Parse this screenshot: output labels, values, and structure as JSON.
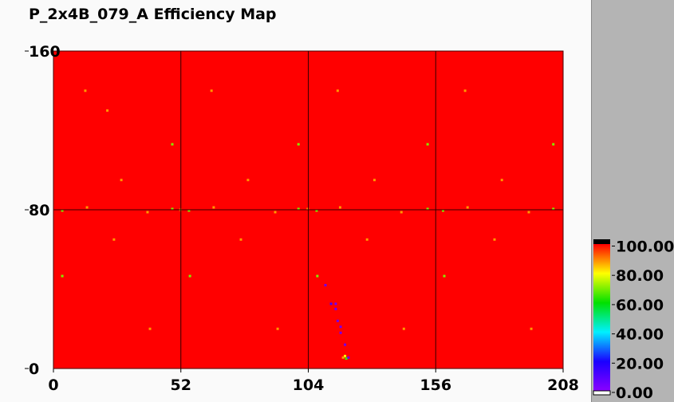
{
  "chart_data": {
    "type": "heatmap",
    "title": "P_2x4B_079_A Efficiency Map",
    "xlim": [
      0,
      208
    ],
    "ylim": [
      0,
      160
    ],
    "xticks": [
      "0",
      "52",
      "104",
      "156",
      "208"
    ],
    "yticks": [
      "0",
      "80",
      "160"
    ],
    "grid": true,
    "background_value": 100,
    "colorbar": {
      "range": [
        0,
        100
      ],
      "ticks": [
        "0.00",
        "20.00",
        "40.00",
        "60.00",
        "80.00",
        "100.00"
      ],
      "placement": "bottom-right"
    },
    "cells": [
      {
        "x": 13,
        "y": 140,
        "v": 88
      },
      {
        "x": 64.5,
        "y": 140,
        "v": 88
      },
      {
        "x": 116,
        "y": 140,
        "v": 88
      },
      {
        "x": 168,
        "y": 140,
        "v": 88
      },
      {
        "x": 22,
        "y": 130,
        "v": 88
      },
      {
        "x": 48.5,
        "y": 113,
        "v": 70
      },
      {
        "x": 100,
        "y": 113,
        "v": 70
      },
      {
        "x": 152.7,
        "y": 113,
        "v": 70
      },
      {
        "x": 204,
        "y": 113,
        "v": 70
      },
      {
        "x": 27.7,
        "y": 95,
        "v": 88
      },
      {
        "x": 79.4,
        "y": 95,
        "v": 88
      },
      {
        "x": 131,
        "y": 95,
        "v": 88
      },
      {
        "x": 183,
        "y": 95,
        "v": 88
      },
      {
        "x": 3.6,
        "y": 79.6,
        "v": 70
      },
      {
        "x": 48.5,
        "y": 80.4,
        "v": 70
      },
      {
        "x": 55.3,
        "y": 79.6,
        "v": 70
      },
      {
        "x": 100,
        "y": 80.4,
        "v": 70
      },
      {
        "x": 107.4,
        "y": 79.6,
        "v": 70
      },
      {
        "x": 152.7,
        "y": 80.4,
        "v": 70
      },
      {
        "x": 159,
        "y": 79.6,
        "v": 70
      },
      {
        "x": 204,
        "y": 80.4,
        "v": 70
      },
      {
        "x": 13.7,
        "y": 81.2,
        "v": 88
      },
      {
        "x": 38.4,
        "y": 78.8,
        "v": 88
      },
      {
        "x": 51.8,
        "y": 80,
        "v": 88
      },
      {
        "x": 65.4,
        "y": 81.2,
        "v": 88
      },
      {
        "x": 90.5,
        "y": 78.8,
        "v": 88
      },
      {
        "x": 103.8,
        "y": 80.4,
        "v": 88
      },
      {
        "x": 117,
        "y": 81.2,
        "v": 88
      },
      {
        "x": 142,
        "y": 78.8,
        "v": 88
      },
      {
        "x": 169,
        "y": 81.2,
        "v": 88
      },
      {
        "x": 194,
        "y": 78.8,
        "v": 88
      },
      {
        "x": 24.7,
        "y": 65,
        "v": 88
      },
      {
        "x": 76.5,
        "y": 65,
        "v": 88
      },
      {
        "x": 128,
        "y": 65,
        "v": 88
      },
      {
        "x": 180,
        "y": 65,
        "v": 88
      },
      {
        "x": 3.6,
        "y": 46.6,
        "v": 70
      },
      {
        "x": 55.7,
        "y": 46.6,
        "v": 70
      },
      {
        "x": 107.7,
        "y": 46.6,
        "v": 70
      },
      {
        "x": 159.5,
        "y": 46.6,
        "v": 70
      },
      {
        "x": 39.4,
        "y": 20,
        "v": 88
      },
      {
        "x": 91.5,
        "y": 20,
        "v": 88
      },
      {
        "x": 143,
        "y": 20,
        "v": 88
      },
      {
        "x": 195,
        "y": 20,
        "v": 88
      },
      {
        "x": 111,
        "y": 42,
        "v": 5
      },
      {
        "x": 113.3,
        "y": 32.6,
        "v": 12
      },
      {
        "x": 115.2,
        "y": 32.6,
        "v": 5
      },
      {
        "x": 115.2,
        "y": 30,
        "v": 5
      },
      {
        "x": 116,
        "y": 24,
        "v": 5
      },
      {
        "x": 117.2,
        "y": 21,
        "v": 5
      },
      {
        "x": 117.2,
        "y": 18,
        "v": 5
      },
      {
        "x": 119,
        "y": 12,
        "v": 5
      },
      {
        "x": 118.2,
        "y": 5.5,
        "v": 88
      },
      {
        "x": 119,
        "y": 6.3,
        "v": 80
      },
      {
        "x": 119.5,
        "y": 5,
        "v": 65
      },
      {
        "x": 120.4,
        "y": 5.5,
        "v": 5
      }
    ]
  }
}
